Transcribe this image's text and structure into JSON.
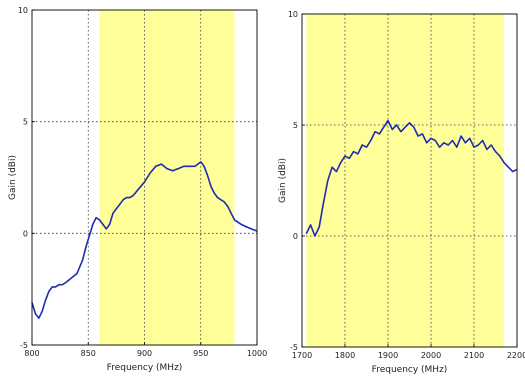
{
  "chart_data": [
    {
      "type": "line",
      "xlabel": "Frequency (MHz)",
      "ylabel": "Gain (dBi)",
      "xlim": [
        800,
        1000
      ],
      "ylim": [
        -5,
        10
      ],
      "xticks": [
        "800",
        "850",
        "900",
        "950",
        "1000"
      ],
      "yticks": [
        "-5",
        "0",
        "5",
        "10"
      ],
      "shaded_band": [
        860,
        980
      ],
      "band_color": "#ffff99",
      "line_color": "#1f2bb0",
      "grid": "dotted",
      "series": [
        {
          "x": [
            800,
            803,
            806,
            809,
            812,
            815,
            818,
            821,
            824,
            827,
            830,
            835,
            840,
            845,
            848,
            851,
            854,
            857,
            860,
            863,
            866,
            869,
            872,
            875,
            878,
            881,
            884,
            887,
            890,
            895,
            900,
            905,
            910,
            915,
            920,
            925,
            930,
            935,
            940,
            945,
            950,
            953,
            956,
            959,
            962,
            965,
            968,
            971,
            974,
            977,
            980,
            983,
            986,
            990,
            995,
            1000
          ],
          "y": [
            -3.1,
            -3.6,
            -3.8,
            -3.5,
            -3.0,
            -2.6,
            -2.4,
            -2.4,
            -2.3,
            -2.3,
            -2.2,
            -2.0,
            -1.8,
            -1.2,
            -0.6,
            -0.1,
            0.4,
            0.7,
            0.6,
            0.4,
            0.2,
            0.4,
            0.9,
            1.1,
            1.3,
            1.5,
            1.6,
            1.6,
            1.7,
            2.0,
            2.3,
            2.7,
            3.0,
            3.1,
            2.9,
            2.8,
            2.9,
            3.0,
            3.0,
            3.0,
            3.2,
            3.0,
            2.6,
            2.1,
            1.8,
            1.6,
            1.5,
            1.4,
            1.2,
            0.9,
            0.6,
            0.5,
            0.4,
            0.3,
            0.2,
            0.1
          ]
        }
      ]
    },
    {
      "type": "line",
      "xlabel": "Frequency (MHz)",
      "ylabel": "Gain (dBi)",
      "xlim": [
        1700,
        2200
      ],
      "ylim": [
        -5,
        10
      ],
      "xticks": [
        "1700",
        "1800",
        "1900",
        "2000",
        "2100",
        "2200"
      ],
      "yticks": [
        "-5",
        "0",
        "5",
        "10"
      ],
      "shaded_band": [
        1710,
        2170
      ],
      "band_color": "#ffff99",
      "line_color": "#1f2bb0",
      "grid": "dotted",
      "series": [
        {
          "x": [
            1710,
            1720,
            1730,
            1740,
            1750,
            1760,
            1770,
            1780,
            1790,
            1800,
            1810,
            1820,
            1830,
            1840,
            1850,
            1860,
            1870,
            1880,
            1890,
            1900,
            1910,
            1920,
            1930,
            1940,
            1950,
            1960,
            1970,
            1980,
            1990,
            2000,
            2010,
            2020,
            2030,
            2040,
            2050,
            2060,
            2070,
            2080,
            2090,
            2100,
            2110,
            2120,
            2130,
            2140,
            2150,
            2160,
            2170,
            2180,
            2190,
            2200
          ],
          "y": [
            0.1,
            0.5,
            0.0,
            0.4,
            1.5,
            2.5,
            3.1,
            2.9,
            3.3,
            3.6,
            3.5,
            3.8,
            3.7,
            4.1,
            4.0,
            4.3,
            4.7,
            4.6,
            4.9,
            5.2,
            4.8,
            5.0,
            4.7,
            4.9,
            5.1,
            4.9,
            4.5,
            4.6,
            4.2,
            4.4,
            4.3,
            4.0,
            4.2,
            4.1,
            4.3,
            4.0,
            4.5,
            4.2,
            4.4,
            4.0,
            4.1,
            4.3,
            3.9,
            4.1,
            3.8,
            3.6,
            3.3,
            3.1,
            2.9,
            3.0
          ]
        }
      ]
    }
  ]
}
